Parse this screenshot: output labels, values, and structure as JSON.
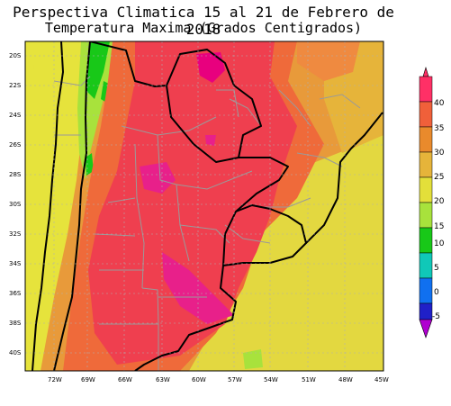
{
  "header": {
    "title": "Perspectiva Climatica 15 al 21 de Febrero de 2018",
    "subtitle": "Temperatura Maxima (Grados Centigrados)"
  },
  "map": {
    "lat_ticks": [
      "20S",
      "22S",
      "24S",
      "26S",
      "28S",
      "30S",
      "32S",
      "34S",
      "36S",
      "38S",
      "40S"
    ],
    "lon_ticks": [
      "72W",
      "69W",
      "66W",
      "63W",
      "60W",
      "57W",
      "54W",
      "51W",
      "48W",
      "45W"
    ],
    "region": "Southern South America (Argentina, Chile, Paraguay, Uruguay, southern Brazil)"
  },
  "legend": {
    "labels": [
      "40",
      "35",
      "30",
      "25",
      "20",
      "15",
      "10",
      "5",
      "0",
      "-5"
    ],
    "colors": [
      "#ff3066",
      "#f0603a",
      "#e98a2c",
      "#e6b43a",
      "#e3df3a",
      "#a8e23c",
      "#18c818",
      "#10c8b8",
      "#1070f0",
      "#2020c8",
      "#b000d0"
    ]
  },
  "colors": {
    "hot_core": "#ef3f4f",
    "very_hot": "#e8007e",
    "warm": "#f08838",
    "mild": "#e6e33c",
    "cool_green": "#9be040",
    "cold_green": "#14c814",
    "borders": "#9a9a9a",
    "coast": "#000000"
  }
}
